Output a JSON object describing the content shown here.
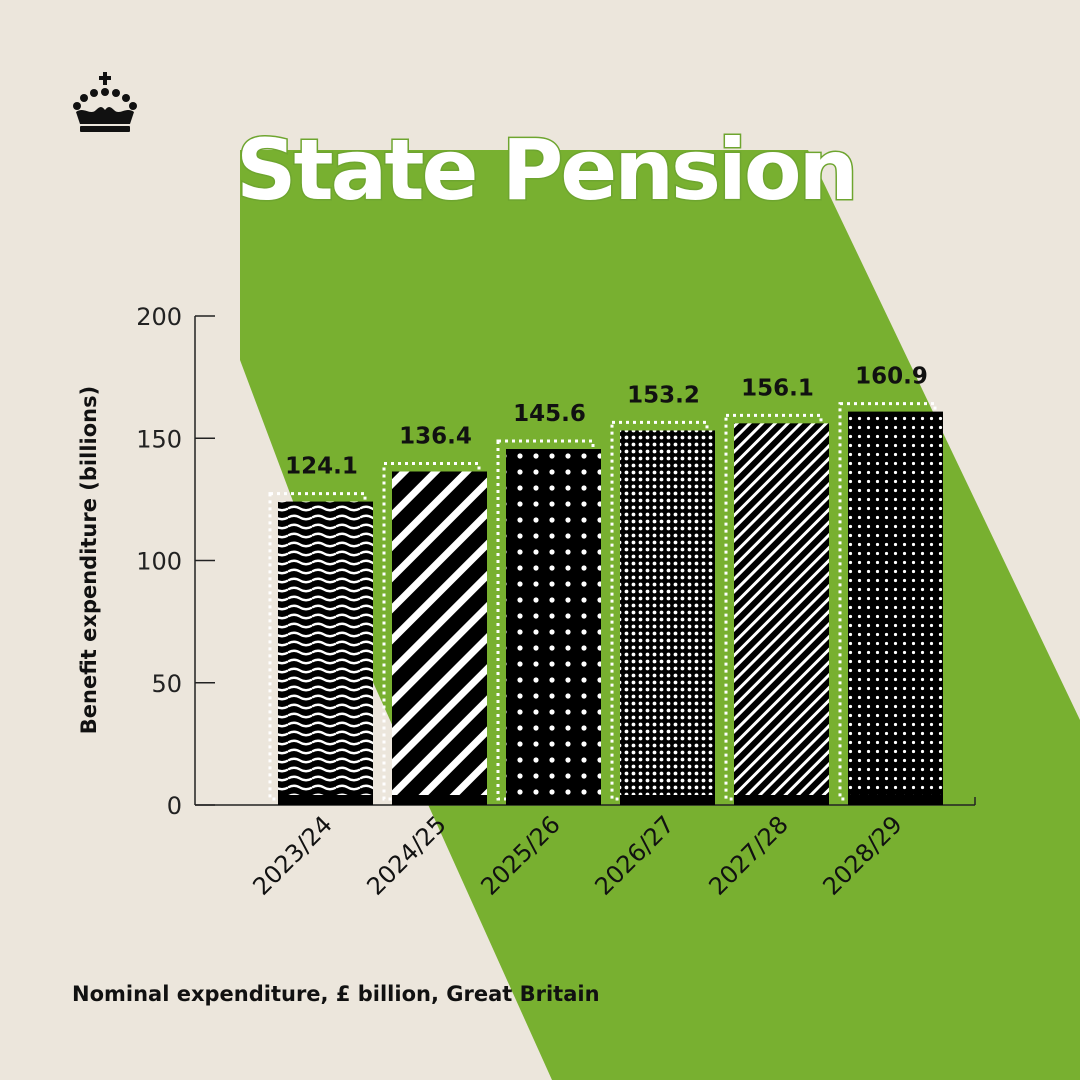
{
  "colors": {
    "background": "#ece6dc",
    "accent": "#78b030",
    "bars": "#000000",
    "text": "#111111"
  },
  "logo": {
    "icon": "crown-icon"
  },
  "footnote": "Nominal expenditure, £ billion, Great Britain",
  "chart_data": {
    "type": "bar",
    "title": "State Pension",
    "subtitle": "",
    "xlabel": "",
    "ylabel": "Benefit expenditure (billions)",
    "ylim": [
      0,
      200
    ],
    "yticks": [
      0,
      50,
      100,
      150,
      200
    ],
    "categories": [
      "2023/24",
      "2024/25",
      "2025/26",
      "2026/27",
      "2027/28",
      "2028/29"
    ],
    "values": [
      124.1,
      136.4,
      145.6,
      153.2,
      156.1,
      160.9
    ],
    "data_labels": [
      "124.1",
      "136.4",
      "145.6",
      "153.2",
      "156.1",
      "160.9"
    ],
    "bar_patterns": [
      "waves",
      "diagonal-stripes",
      "large-dots",
      "fine-dots",
      "fine-diagonal-stripes",
      "dots"
    ],
    "grid": false,
    "legend": "none"
  }
}
